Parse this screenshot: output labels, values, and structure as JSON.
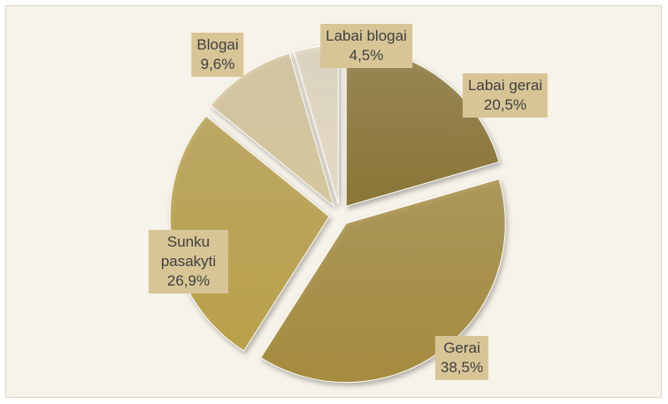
{
  "chart_data": {
    "type": "pie",
    "categories": [
      "Labai gerai",
      "Gerai",
      "Sunku pasakyti",
      "Blogai",
      "Labai blogai"
    ],
    "values": [
      20.5,
      38.5,
      26.9,
      9.6,
      4.5
    ],
    "value_labels": [
      "20,5%",
      "38,5%",
      "26,9%",
      "9,6%",
      "4,5%"
    ],
    "colors": [
      "#8b7536",
      "#a58b3e",
      "#b9a049",
      "#d6c69c",
      "#e4dac3"
    ]
  }
}
